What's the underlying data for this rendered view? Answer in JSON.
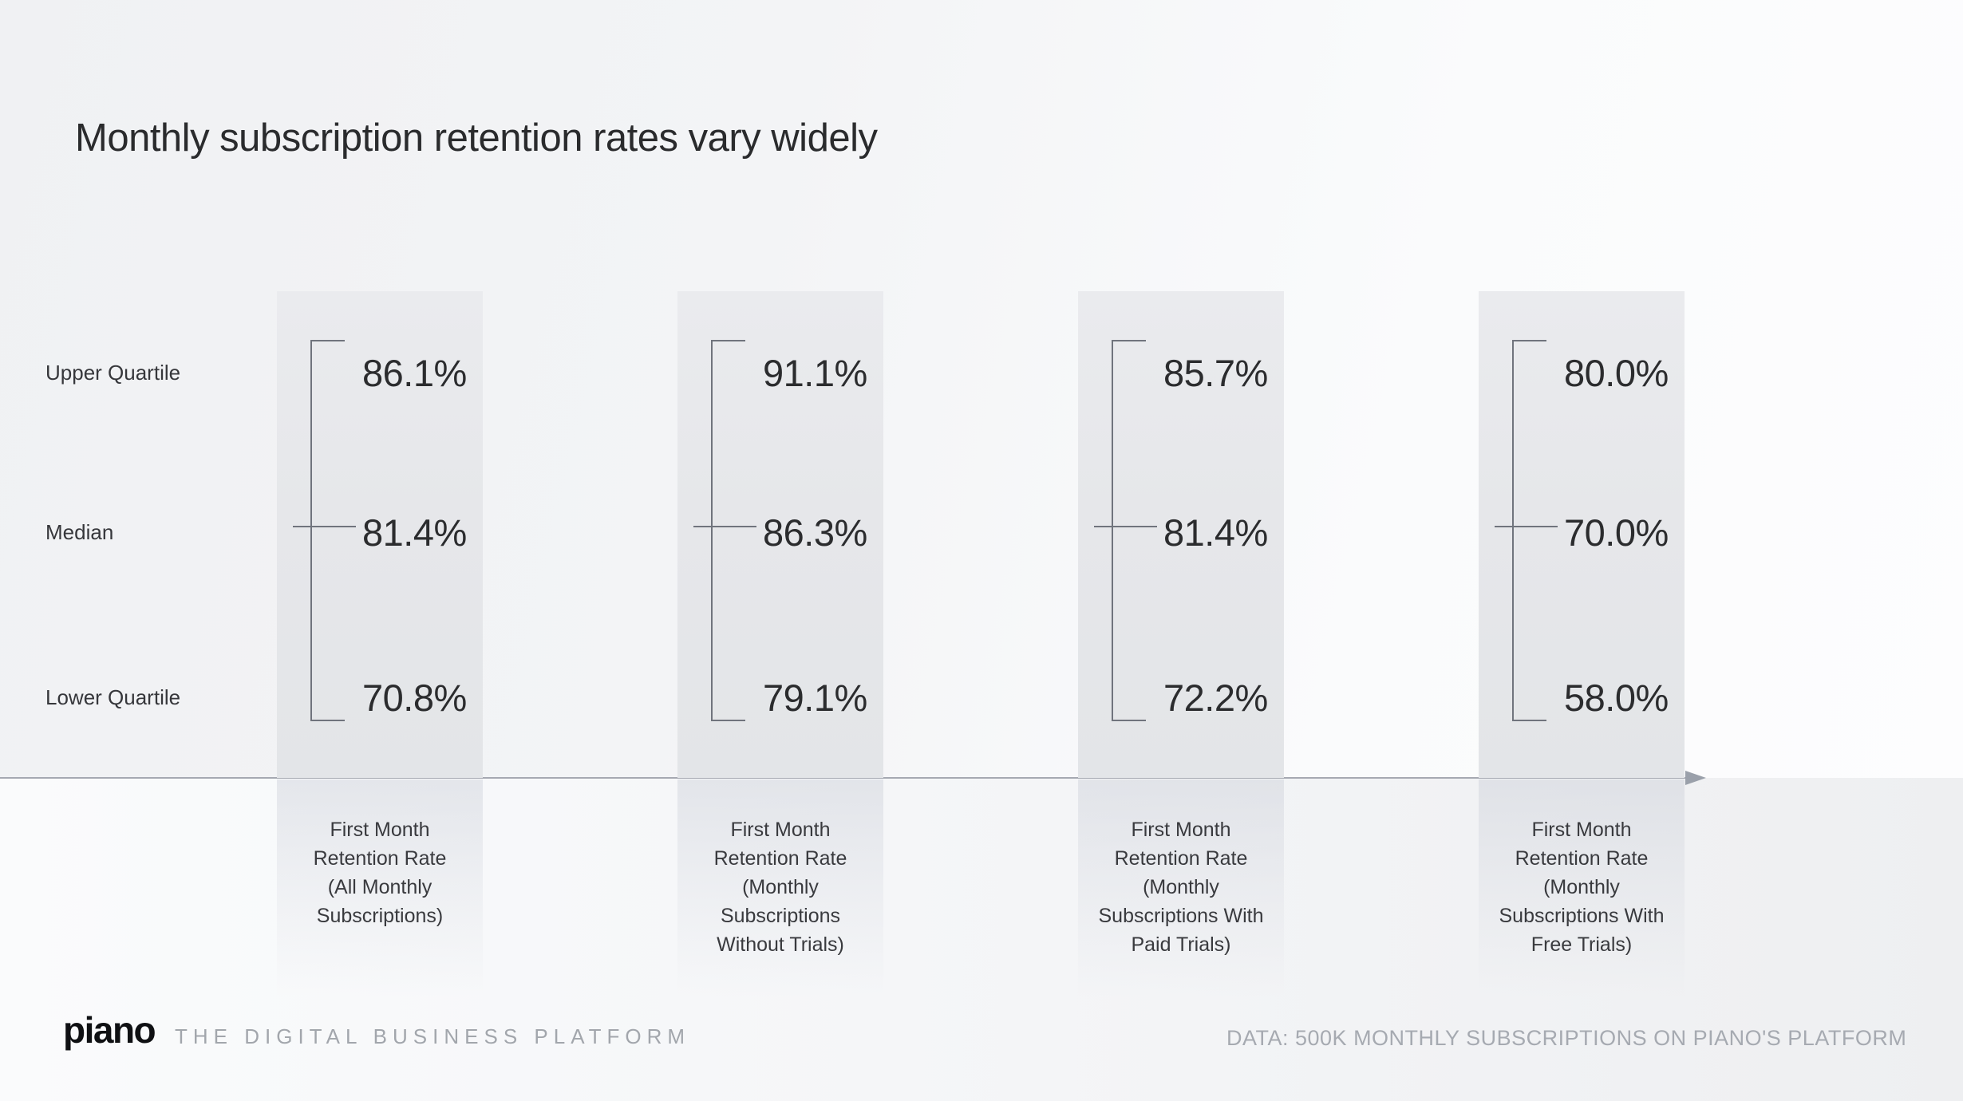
{
  "title": "Monthly subscription retention rates vary widely",
  "row_labels": {
    "upper": "Upper Quartile",
    "median": "Median",
    "lower": "Lower Quartile"
  },
  "chart_data": {
    "type": "table",
    "title": "Monthly subscription retention rates vary widely",
    "row_labels": [
      "Upper Quartile",
      "Median",
      "Lower Quartile"
    ],
    "unit": "first month retention rate (%)",
    "columns": [
      {
        "label": "First Month\nRetention Rate\n(All Monthly\nSubscriptions)",
        "values": {
          "upper": "86.1%",
          "median": "81.4%",
          "lower": "70.8%"
        },
        "numeric": {
          "upper": 86.1,
          "median": 81.4,
          "lower": 70.8
        }
      },
      {
        "label": "First Month\nRetention Rate\n(Monthly\nSubscriptions\nWithout Trials)",
        "values": {
          "upper": "91.1%",
          "median": "86.3%",
          "lower": "79.1%"
        },
        "numeric": {
          "upper": 91.1,
          "median": 86.3,
          "lower": 79.1
        }
      },
      {
        "label": "First Month\nRetention Rate\n(Monthly\nSubscriptions With\nPaid Trials)",
        "values": {
          "upper": "85.7%",
          "median": "81.4%",
          "lower": "72.2%"
        },
        "numeric": {
          "upper": 85.7,
          "median": 81.4,
          "lower": 72.2
        }
      },
      {
        "label": "First Month\nRetention Rate\n(Monthly\nSubscriptions With\nFree Trials)",
        "values": {
          "upper": "80.0%",
          "median": "70.0%",
          "lower": "58.0%"
        },
        "numeric": {
          "upper": 80.0,
          "median": 70.0,
          "lower": 58.0
        }
      }
    ],
    "layout": {
      "legend": "none",
      "grid": false,
      "axis": "horizontal baseline with right arrow"
    }
  },
  "footer": {
    "logo": "piano",
    "tagline": "THE DIGITAL BUSINESS PLATFORM",
    "source": "DATA: 500K MONTHLY SUBSCRIPTIONS ON PIANO'S PLATFORM"
  },
  "colors": {
    "background_gray": "#eff0f2",
    "background_white": "#fdfdfe",
    "panel": "#e6e7ea",
    "bracket": "#70747d",
    "axis": "#a6a9b2",
    "title_text": "#2a2b2d",
    "value_text": "#2b2c2e",
    "label_text": "#393a3e",
    "muted_text": "#a6aab1"
  }
}
